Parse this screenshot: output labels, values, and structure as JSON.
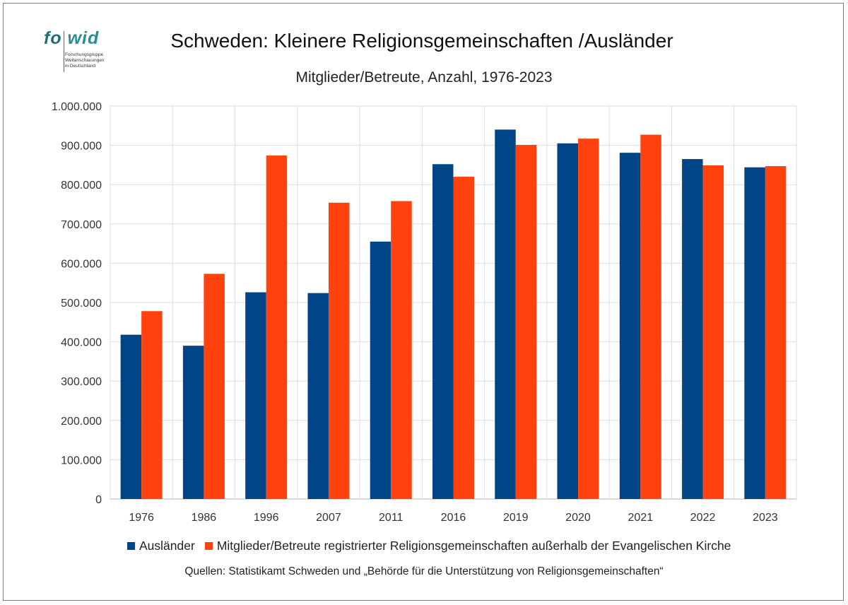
{
  "logo": {
    "word_a": "fo",
    "word_b": "wid",
    "sub": "Forschungsgruppe\nWeltanschauungen\nin Deutschland"
  },
  "title": "Schweden: Kleinere Religionsgemeinschaften /Ausländer",
  "subtitle": "Mitglieder/Betreute, Anzahl, 1976-2023",
  "source": "Quellen: Statistikamt Schweden und „Behörde für die Unterstützung von Religionsgemeinschaften“",
  "chart_data": {
    "type": "bar",
    "categories": [
      "1976",
      "1986",
      "1996",
      "2007",
      "2011",
      "2016",
      "2019",
      "2020",
      "2021",
      "2022",
      "2023"
    ],
    "series": [
      {
        "name": "Ausländer",
        "color": "#004586",
        "values": [
          418000,
          390000,
          526000,
          524000,
          655000,
          852000,
          940000,
          905000,
          881000,
          865000,
          844000
        ]
      },
      {
        "name": "Mitglieder/Betreute registrierter Religionsgemeinschaften außerhalb der Evangelischen Kirche",
        "color": "#ff420e",
        "values": [
          478000,
          573000,
          874000,
          754000,
          758000,
          820000,
          901000,
          917000,
          927000,
          849000,
          847000
        ]
      }
    ],
    "yticks": [
      "0",
      "100.000",
      "200.000",
      "300.000",
      "400.000",
      "500.000",
      "600.000",
      "700.000",
      "800.000",
      "900.000",
      "1.000.000"
    ],
    "ylim": [
      0,
      1000000
    ],
    "grid": true,
    "legend_position": "bottom"
  }
}
